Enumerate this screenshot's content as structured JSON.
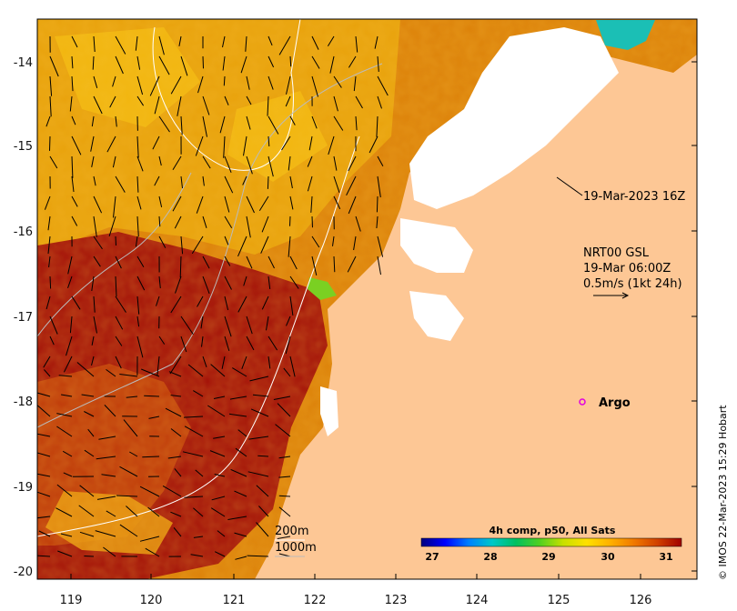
{
  "map": {
    "x_ticks": [
      "119",
      "120",
      "121",
      "122",
      "123",
      "124",
      "125",
      "126"
    ],
    "y_ticks": [
      "-14",
      "-15",
      "-16",
      "-17",
      "-18",
      "-19",
      "-20"
    ],
    "land_color": "#fdc795",
    "cloud_color": "#ffffff",
    "sst_colors": [
      "#9a0a0a",
      "#c24a08",
      "#d9750a",
      "#e9a50a",
      "#f7c40a",
      "#7ad022",
      "#1bbfb5"
    ]
  },
  "annotations": {
    "timestamp": "19-Mar-2023 16Z",
    "current_line1": "NRT00 GSL",
    "current_line2": "19-Mar 06:00Z",
    "current_line3": "0.5m/s (1kt 24h)",
    "argo_label": "Argo"
  },
  "contours": {
    "label_200": "200m",
    "label_1000": "1000m"
  },
  "colorbar": {
    "title": "4h comp, p50, All Sats",
    "ticks": [
      "27",
      "28",
      "29",
      "30",
      "31"
    ],
    "gradient": [
      "#00007f",
      "#0000ff",
      "#0080ff",
      "#00c8c8",
      "#00c060",
      "#50d020",
      "#c8e000",
      "#ffe000",
      "#ffb000",
      "#f07800",
      "#d04000",
      "#a00000"
    ]
  },
  "credit": "© IMOS 22-Mar-2023 15:29 Hobart"
}
